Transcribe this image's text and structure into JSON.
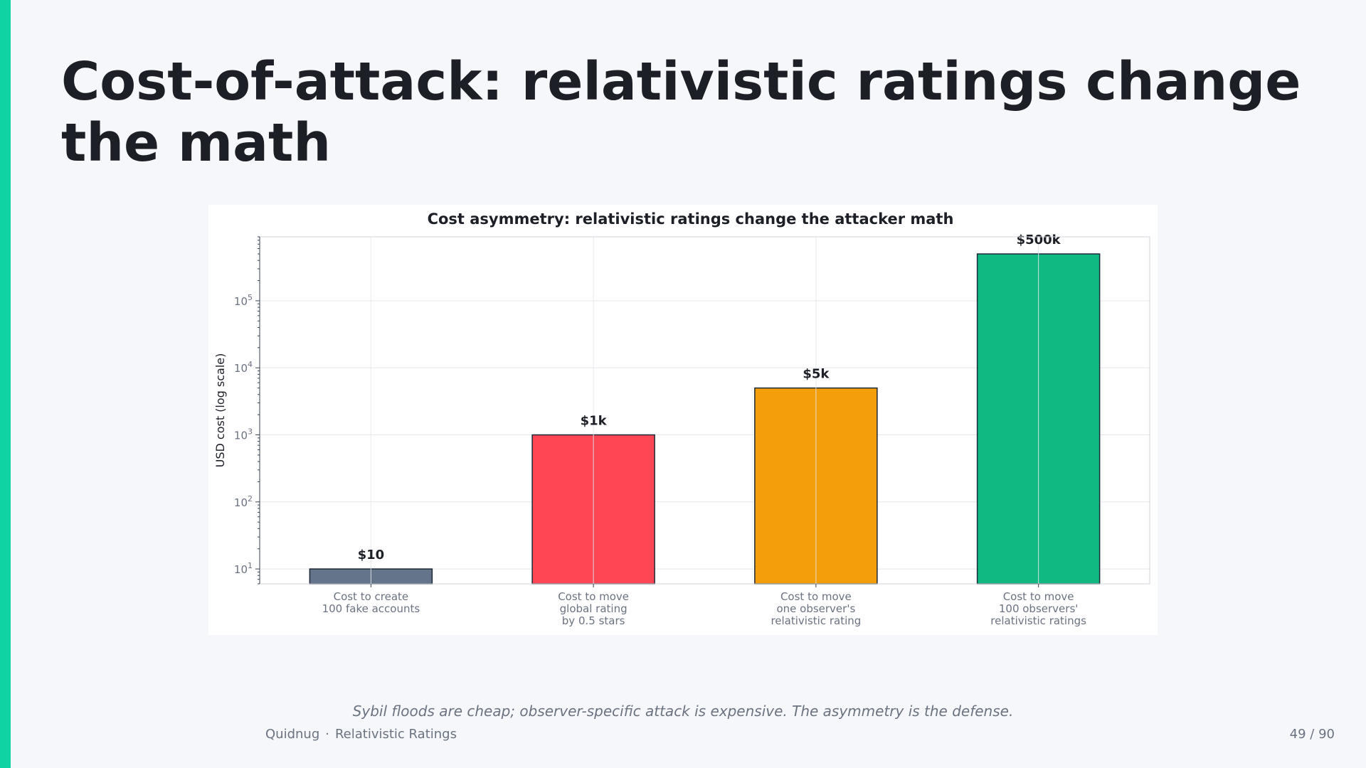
{
  "slide": {
    "title": "Cost-of-attack: relativistic ratings change the math",
    "caption": "Sybil floods are cheap; observer-specific attack is expensive. The asymmetry is the defense.",
    "accent_color": "#10d3a3"
  },
  "footer": {
    "deck": "Quidnug",
    "separator": "·",
    "section": "Relativistic Ratings",
    "page": "49 / 90"
  },
  "chart_data": {
    "type": "bar",
    "title": "Cost asymmetry: relativistic ratings change the attacker math",
    "ylabel": "USD cost (log scale)",
    "xlabel": "",
    "yscale": "log",
    "ylim": [
      6,
      900000
    ],
    "grid": true,
    "yticks": [
      {
        "value": 10,
        "base": "10",
        "exp": "1"
      },
      {
        "value": 100,
        "base": "10",
        "exp": "2"
      },
      {
        "value": 1000,
        "base": "10",
        "exp": "3"
      },
      {
        "value": 10000,
        "base": "10",
        "exp": "4"
      },
      {
        "value": 100000,
        "base": "10",
        "exp": "5"
      }
    ],
    "categories": [
      [
        "Cost to create",
        "100 fake accounts"
      ],
      [
        "Cost to move",
        "global rating",
        "by 0.5 stars"
      ],
      [
        "Cost to move",
        "one observer's",
        "relativistic rating"
      ],
      [
        "Cost to move",
        "100 observers'",
        "relativistic ratings"
      ]
    ],
    "values": [
      10,
      1000,
      5000,
      500000
    ],
    "data_labels": [
      "$10",
      "$1k",
      "$5k",
      "$500k"
    ],
    "colors": [
      "#64748b",
      "#ff4655",
      "#f59e0b",
      "#10b981"
    ]
  }
}
